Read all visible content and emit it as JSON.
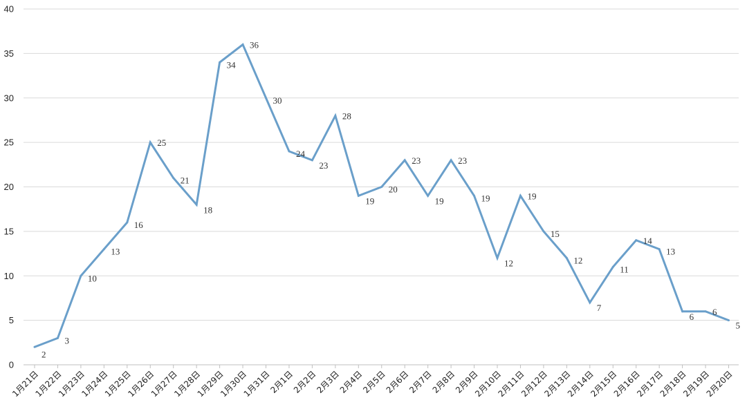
{
  "colors": {
    "line": "#6a9fca",
    "grid": "#d9d9d9",
    "text": "#222222"
  },
  "chart_data": {
    "type": "line",
    "title": "",
    "xlabel": "",
    "ylabel": "",
    "ylim": [
      0,
      40
    ],
    "yticks": [
      0,
      5,
      10,
      15,
      20,
      25,
      30,
      35,
      40
    ],
    "grid": true,
    "legend": "none",
    "categories": [
      "1月21日",
      "1月22日",
      "1月23日",
      "1月24日",
      "1月25日",
      "1月26日",
      "1月27日",
      "1月28日",
      "1月29日",
      "1月30日",
      "1月31日",
      "2月1日",
      "2月2日",
      "2月3日",
      "2月4日",
      "2月5日",
      "2月6日",
      "2月7日",
      "2月8日",
      "2月9日",
      "2月10日",
      "2月11日",
      "2月12日",
      "2月13日",
      "2月14日",
      "2月15日",
      "2月16日",
      "2月17日",
      "2月18日",
      "2月19日",
      "2月20日"
    ],
    "values": [
      2,
      3,
      10,
      13,
      16,
      25,
      21,
      18,
      34,
      36,
      30,
      24,
      23,
      28,
      19,
      20,
      23,
      19,
      23,
      19,
      12,
      19,
      15,
      12,
      7,
      11,
      14,
      13,
      6,
      6,
      5
    ]
  }
}
